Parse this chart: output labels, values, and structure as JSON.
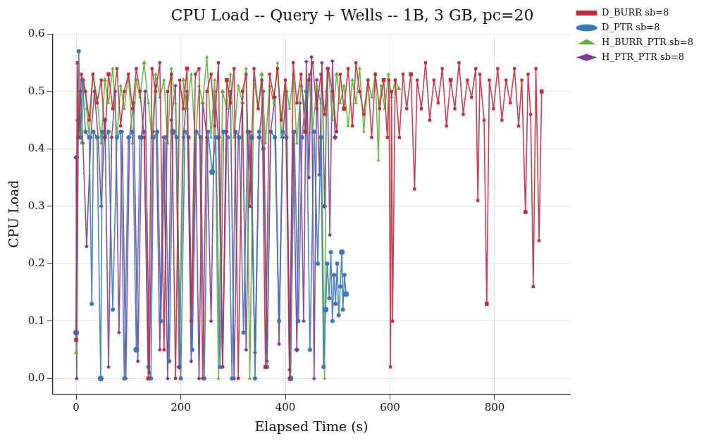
{
  "chart_data": {
    "type": "line",
    "title": "CPU Load -- Query + Wells -- 1B, 3 GB, pc=20",
    "xlabel": "Elapsed Time (s)",
    "ylabel": "CPU Load",
    "xlim": [
      -45,
      945
    ],
    "xticks": [
      0,
      200,
      400,
      600,
      800
    ],
    "ylim": [
      -0.027,
      0.6
    ],
    "yticks": [
      {
        "value": 0,
        "label": "0.0"
      },
      {
        "value": 0.1,
        "label": "0.1"
      },
      {
        "value": 0.2,
        "label": "0.2"
      },
      {
        "value": 0.3,
        "label": "0.3"
      },
      {
        "value": 0.4,
        "label": "0.4"
      },
      {
        "value": 0.5,
        "label": "0.5"
      },
      {
        "value": 0.6,
        "label": "0.6"
      }
    ],
    "grid": true,
    "legend": "right",
    "line_style": "solid",
    "series": [
      {
        "name": "D_BURR sb=8",
        "color": "#c42a3c",
        "marker": "square",
        "x": [
          0,
          2,
          5,
          10,
          18,
          25,
          32,
          40,
          48,
          55,
          62,
          70,
          78,
          85,
          92,
          100,
          108,
          115,
          122,
          130,
          138,
          145,
          152,
          160,
          168,
          175,
          182,
          190,
          198,
          205,
          212,
          220,
          228,
          235,
          242,
          250,
          258,
          265,
          272,
          280,
          288,
          295,
          302,
          310,
          318,
          325,
          332,
          340,
          348,
          355,
          362,
          370,
          378,
          385,
          392,
          400,
          408,
          415,
          422,
          430,
          438,
          445,
          452,
          460,
          468,
          475,
          482,
          490,
          498,
          505,
          512,
          520,
          528,
          535,
          542,
          550,
          558,
          565,
          572,
          580,
          588,
          595,
          598,
          601,
          603,
          605,
          610,
          618,
          625,
          632,
          640,
          647,
          652,
          660,
          668,
          676,
          684,
          692,
          700,
          708,
          716,
          724,
          732,
          740,
          748,
          756,
          764,
          768,
          772,
          780,
          785,
          790,
          798,
          806,
          814,
          822,
          830,
          838,
          846,
          852,
          859,
          864,
          869,
          874,
          879,
          885,
          890
        ],
        "values": [
          0.067,
          0.55,
          0.42,
          0.53,
          0.5,
          0.45,
          0.53,
          0.48,
          0.52,
          0.42,
          0.53,
          0.47,
          0.54,
          0.44,
          0.5,
          0.53,
          0.47,
          0.54,
          0.5,
          0.42,
          0.0,
          0.54,
          0.5,
          0.55,
          0.05,
          0.5,
          0.53,
          0.0,
          0.52,
          0.47,
          0.54,
          0.1,
          0.53,
          0.54,
          0.0,
          0.5,
          0.53,
          0.44,
          0.55,
          0.02,
          0.52,
          0.48,
          0.54,
          0.0,
          0.5,
          0.53,
          0.3,
          0.54,
          0.47,
          0.52,
          0.02,
          0.53,
          0.49,
          0.54,
          0.45,
          0.52,
          0.0,
          0.55,
          0.48,
          0.53,
          0.43,
          0.52,
          0.55,
          0.47,
          0.53,
          0.46,
          0.54,
          0.5,
          0.43,
          0.53,
          0.47,
          0.54,
          0.44,
          0.55,
          0.5,
          0.46,
          0.52,
          0.42,
          0.53,
          0.47,
          0.52,
          0.42,
          0.52,
          0.02,
          0.5,
          0.1,
          0.52,
          0.42,
          0.53,
          0.47,
          0.53,
          0.33,
          0.52,
          0.47,
          0.55,
          0.45,
          0.52,
          0.48,
          0.54,
          0.44,
          0.52,
          0.47,
          0.55,
          0.46,
          0.52,
          0.49,
          0.54,
          0.31,
          0.53,
          0.45,
          0.13,
          0.52,
          0.47,
          0.54,
          0.45,
          0.52,
          0.48,
          0.54,
          0.44,
          0.52,
          0.29,
          0.53,
          0.46,
          0.16,
          0.54,
          0.24,
          0.5
        ]
      },
      {
        "name": "D_PTR sb=8",
        "color": "#3a78b8",
        "marker": "circle",
        "x": [
          0,
          3,
          5,
          8,
          12,
          18,
          25,
          30,
          33,
          40,
          47,
          50,
          55,
          62,
          70,
          78,
          85,
          92,
          100,
          108,
          115,
          122,
          130,
          138,
          143,
          148,
          155,
          162,
          170,
          178,
          185,
          192,
          200,
          208,
          215,
          222,
          230,
          238,
          245,
          252,
          260,
          267,
          275,
          282,
          290,
          298,
          305,
          312,
          320,
          328,
          335,
          342,
          350,
          358,
          365,
          372,
          380,
          388,
          395,
          402,
          410,
          417,
          425,
          432,
          440,
          447,
          455,
          462,
          468,
          473,
          477,
          480,
          484,
          487,
          490,
          493,
          496,
          499,
          502,
          505,
          508,
          510,
          513,
          516
        ],
        "values": [
          0.08,
          0.45,
          0.57,
          0.42,
          0.52,
          0.43,
          0.42,
          0.13,
          0.43,
          0.42,
          0.0,
          0.43,
          0.42,
          0.43,
          0.12,
          0.42,
          0.43,
          0.0,
          0.42,
          0.43,
          0.05,
          0.42,
          0.43,
          0.02,
          0.0,
          0.42,
          0.43,
          0.1,
          0.42,
          0.03,
          0.43,
          0.42,
          0.0,
          0.43,
          0.42,
          0.05,
          0.43,
          0.42,
          0.0,
          0.43,
          0.36,
          0.42,
          0.02,
          0.43,
          0.42,
          0.0,
          0.43,
          0.42,
          0.08,
          0.43,
          0.42,
          0.0,
          0.43,
          0.4,
          0.02,
          0.43,
          0.42,
          0.1,
          0.43,
          0.42,
          0.0,
          0.43,
          0.1,
          0.42,
          0.5,
          0.05,
          0.43,
          0.2,
          0.42,
          0.02,
          0.12,
          0.2,
          0.14,
          0.22,
          0.1,
          0.18,
          0.13,
          0.2,
          0.11,
          0.16,
          0.22,
          0.12,
          0.18,
          0.147
        ]
      },
      {
        "name": "H_BURR_PTR sb=8",
        "color": "#5db234",
        "marker": "triangle",
        "x": [
          0,
          3,
          6,
          10,
          15,
          20,
          25,
          32,
          40,
          48,
          55,
          62,
          70,
          78,
          85,
          92,
          100,
          108,
          115,
          122,
          130,
          138,
          145,
          152,
          160,
          168,
          175,
          182,
          190,
          198,
          205,
          212,
          220,
          228,
          235,
          242,
          250,
          258,
          265,
          272,
          280,
          288,
          295,
          302,
          310,
          318,
          325,
          332,
          340,
          348,
          355,
          362,
          370,
          378,
          385,
          392,
          400,
          408,
          415,
          422,
          430,
          438,
          445,
          452,
          460,
          468,
          475,
          478,
          482,
          490,
          498,
          505,
          512,
          520,
          528,
          535,
          542,
          550,
          558,
          565,
          572,
          578,
          580,
          583,
          590,
          597,
          603,
          610,
          617
        ],
        "values": [
          0.045,
          0.42,
          0.5,
          0.41,
          0.52,
          0.47,
          0.42,
          0.53,
          0.49,
          0.41,
          0.52,
          0.48,
          0.54,
          0.42,
          0.51,
          0.47,
          0.53,
          0.41,
          0.52,
          0.49,
          0.55,
          0.48,
          0.42,
          0.53,
          0.49,
          0.52,
          0.41,
          0.54,
          0.48,
          0.05,
          0.52,
          0.47,
          0.53,
          0.41,
          0.51,
          0.48,
          0.56,
          0.42,
          0.52,
          0.0,
          0.5,
          0.47,
          0.53,
          0.42,
          0.51,
          0.48,
          0.54,
          0.0,
          0.52,
          0.47,
          0.53,
          0.41,
          0.51,
          0.48,
          0.55,
          0.42,
          0.52,
          0.47,
          0.53,
          0.41,
          0.51,
          0.47,
          0.53,
          0.43,
          0.51,
          0.48,
          0.0,
          0.5,
          0.54,
          0.45,
          0.53,
          0.48,
          0.51,
          0.44,
          0.52,
          0.48,
          0.54,
          0.43,
          0.52,
          0.49,
          0.53,
          0.38,
          0.48,
          0.51,
          0.47,
          0.53,
          0.49,
          0.52,
          0.505
        ]
      },
      {
        "name": "H_PTR_PTR sb=8",
        "color": "#7b3b98",
        "marker": "diamond",
        "x": [
          0,
          1,
          4,
          8,
          13,
          20,
          28,
          35,
          42,
          48,
          55,
          62,
          68,
          75,
          82,
          88,
          95,
          102,
          110,
          118,
          125,
          132,
          140,
          147,
          152,
          160,
          167,
          175,
          182,
          190,
          197,
          205,
          212,
          220,
          228,
          235,
          242,
          250,
          258,
          265,
          272,
          280,
          288,
          295,
          302,
          310,
          318,
          325,
          332,
          342,
          350,
          358,
          365,
          372,
          380,
          388,
          395,
          402,
          408,
          415,
          422,
          428,
          435,
          440,
          445,
          450,
          455,
          460,
          465,
          470,
          475,
          480,
          485,
          490,
          495
        ],
        "values": [
          0.385,
          0.0,
          0.42,
          0.5,
          0.41,
          0.23,
          0.42,
          0.5,
          0.42,
          0.3,
          0.45,
          0.02,
          0.42,
          0.5,
          0.08,
          0.43,
          0.0,
          0.42,
          0.48,
          0.03,
          0.42,
          0.5,
          0.01,
          0.43,
          0.51,
          0.05,
          0.42,
          0.0,
          0.45,
          0.51,
          0.02,
          0.42,
          0.5,
          0.03,
          0.43,
          0.0,
          0.48,
          0.42,
          0.1,
          0.5,
          0.42,
          0.02,
          0.43,
          0.5,
          0.0,
          0.42,
          0.48,
          0.05,
          0.43,
          0.045,
          0.42,
          0.5,
          0.03,
          0.43,
          0.49,
          0.06,
          0.42,
          0.5,
          0.015,
          0.43,
          0.05,
          0.48,
          0.1,
          0.552,
          0.35,
          0.56,
          0.0,
          0.52,
          0.355,
          0.55,
          0.3,
          0.54,
          0.25,
          0.553,
          0.42
        ]
      }
    ]
  }
}
